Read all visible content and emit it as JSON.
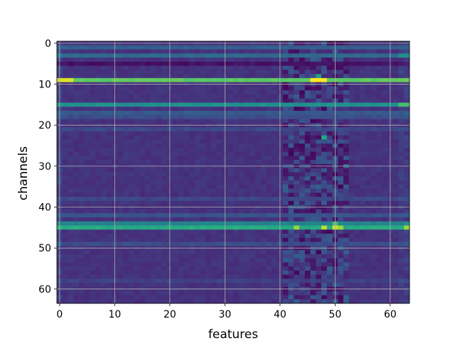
{
  "chart_data": {
    "type": "heatmap",
    "title": "",
    "xlabel": "features",
    "ylabel": "channels",
    "rows": 64,
    "cols": 64,
    "xlim": [
      0,
      63
    ],
    "ylim": [
      63,
      0
    ],
    "xticks": [
      0,
      10,
      20,
      30,
      40,
      50,
      60
    ],
    "yticks": [
      0,
      10,
      20,
      30,
      40,
      50,
      60
    ],
    "grid": true,
    "colormap": "viridis",
    "value_range": [
      0,
      1
    ],
    "base_level": 0.15,
    "row_levels": [
      {
        "row": 1,
        "level": 0.3
      },
      {
        "row": 3,
        "level": 0.35
      },
      {
        "row": 5,
        "level": 0.05
      },
      {
        "row": 9,
        "level": 0.75
      },
      {
        "row": 15,
        "level": 0.5
      },
      {
        "row": 17,
        "level": 0.28
      },
      {
        "row": 18,
        "level": 0.24
      },
      {
        "row": 21,
        "level": 0.22
      },
      {
        "row": 38,
        "level": 0.22
      },
      {
        "row": 42,
        "level": 0.26
      },
      {
        "row": 44,
        "level": 0.45
      },
      {
        "row": 45,
        "level": 0.62
      },
      {
        "row": 49,
        "level": 0.24
      },
      {
        "row": 58,
        "level": 0.2
      }
    ],
    "hot_cells": [
      {
        "row": 9,
        "col": 0,
        "level": 0.95
      },
      {
        "row": 9,
        "col": 1,
        "level": 0.95
      },
      {
        "row": 9,
        "col": 2,
        "level": 0.95
      },
      {
        "row": 9,
        "col": 46,
        "level": 1.0
      },
      {
        "row": 9,
        "col": 47,
        "level": 1.0
      },
      {
        "row": 9,
        "col": 48,
        "level": 1.0
      },
      {
        "row": 8,
        "col": 47,
        "level": 0.55
      },
      {
        "row": 45,
        "col": 43,
        "level": 0.85
      },
      {
        "row": 45,
        "col": 48,
        "level": 0.9
      },
      {
        "row": 45,
        "col": 50,
        "level": 0.92
      },
      {
        "row": 45,
        "col": 51,
        "level": 0.85
      },
      {
        "row": 45,
        "col": 63,
        "level": 0.85
      },
      {
        "row": 44,
        "col": 50,
        "level": 0.7
      },
      {
        "row": 23,
        "col": 48,
        "level": 0.6
      },
      {
        "row": 15,
        "col": 62,
        "level": 0.7
      },
      {
        "row": 15,
        "col": 63,
        "level": 0.7
      },
      {
        "row": 3,
        "col": 62,
        "level": 0.5
      },
      {
        "row": 3,
        "col": 63,
        "level": 0.5
      }
    ],
    "noisy_columns": [
      41,
      52
    ]
  }
}
